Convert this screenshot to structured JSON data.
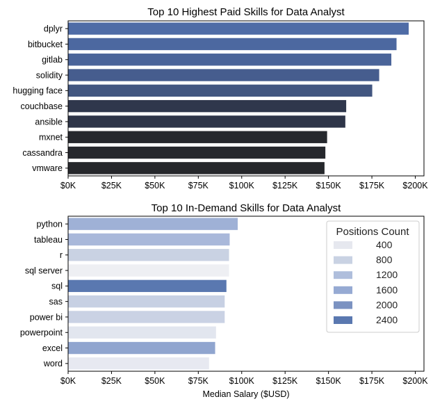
{
  "chart_data": [
    {
      "type": "bar",
      "orientation": "horizontal",
      "title": "Top 10 Highest Paid Skills for Data Analyst",
      "xlabel": "",
      "ylabel": "",
      "xlim": [
        0,
        205000
      ],
      "xticks": [
        0,
        25000,
        50000,
        75000,
        100000,
        125000,
        150000,
        175000,
        200000
      ],
      "xtick_labels": [
        "$0K",
        "$25K",
        "$50K",
        "$75K",
        "$100K",
        "$125K",
        "$150K",
        "$175K",
        "$200K"
      ],
      "categories": [
        "dplyr",
        "bitbucket",
        "gitlab",
        "solidity",
        "hugging face",
        "couchbase",
        "ansible",
        "mxnet",
        "cassandra",
        "vmware"
      ],
      "values": [
        196000,
        189000,
        186000,
        179000,
        175000,
        160000,
        159500,
        149000,
        148000,
        147500
      ],
      "colors": [
        "#4f6ca6",
        "#4c68a0",
        "#4a6499",
        "#465d8e",
        "#425680",
        "#2f374c",
        "#2e3548",
        "#27292e",
        "#26282d",
        "#26282c"
      ],
      "grid": false
    },
    {
      "type": "bar",
      "orientation": "horizontal",
      "title": "Top 10 In-Demand Skills for Data Analyst",
      "xlabel": "Median Salary ($USD)",
      "ylabel": "",
      "xlim": [
        0,
        205000
      ],
      "xticks": [
        0,
        25000,
        50000,
        75000,
        100000,
        125000,
        150000,
        175000,
        200000
      ],
      "xtick_labels": [
        "$0K",
        "$25K",
        "$50K",
        "$75K",
        "$100K",
        "$125K",
        "$150K",
        "$175K",
        "$200K"
      ],
      "categories": [
        "python",
        "tableau",
        "r",
        "sql server",
        "sql",
        "sas",
        "power bi",
        "powerpoint",
        "excel",
        "word"
      ],
      "values": [
        97500,
        92875,
        92500,
        92500,
        91000,
        90000,
        90000,
        85000,
        84500,
        81000
      ],
      "colors": [
        "#9fb1d6",
        "#a9b8da",
        "#c9d2e3",
        "#eeeff3",
        "#5a78b0",
        "#c7d0e3",
        "#cad2e4",
        "#e2e6ef",
        "#90a5cf",
        "#e7e9f1"
      ],
      "legend": {
        "title": "Positions Count",
        "position": "upper right",
        "entries": [
          {
            "label": "400",
            "color": "#e6e8ef"
          },
          {
            "label": "800",
            "color": "#c9d2e3"
          },
          {
            "label": "1200",
            "color": "#afbedc"
          },
          {
            "label": "1600",
            "color": "#96aad3"
          },
          {
            "label": "2000",
            "color": "#7b92c1"
          },
          {
            "label": "2400",
            "color": "#5a78b0"
          }
        ]
      },
      "grid": false
    }
  ]
}
